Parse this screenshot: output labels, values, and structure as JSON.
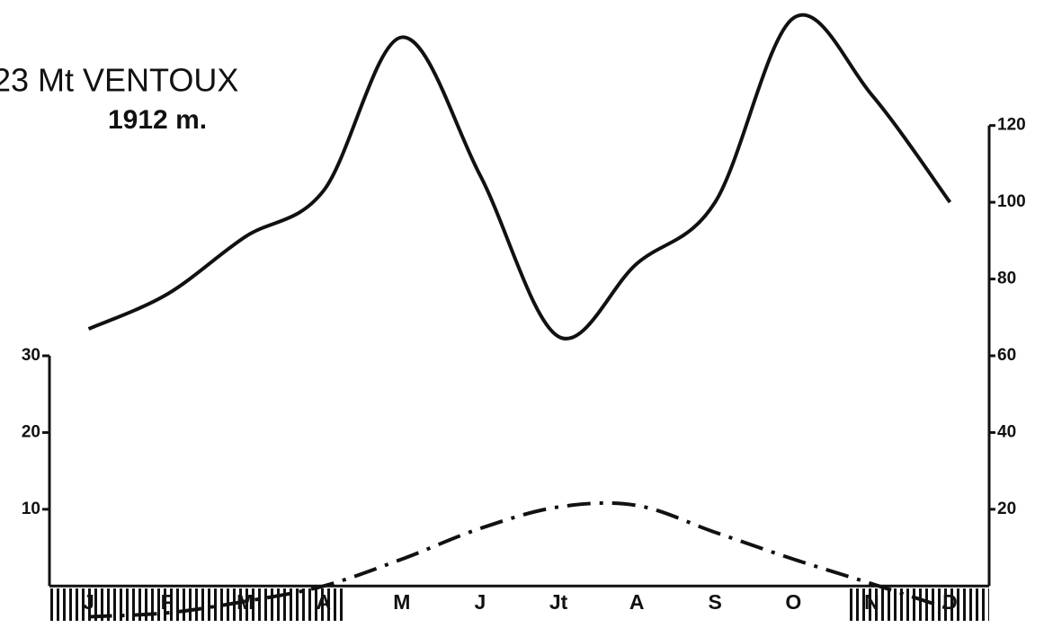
{
  "chart_data": {
    "type": "climate",
    "title": "23 Mt VENTOUX",
    "subtitle": "1912 m.",
    "categories": [
      "J",
      "F",
      "M",
      "A",
      "M",
      "J",
      "Jt",
      "A",
      "S",
      "O",
      "N",
      "D"
    ],
    "series": [
      {
        "color": "#111111",
        "axis": "y2",
        "values": [
          67,
          76,
          91,
          103,
          143,
          107,
          65,
          84,
          100,
          148,
          128,
          100
        ]
      },
      {
        "color": "#111111",
        "axis": "y",
        "values": [
          -4,
          -3.5,
          -2,
          0,
          3.5,
          7.5,
          10.3,
          10.5,
          7,
          3.5,
          0.3,
          -3
        ]
      }
    ],
    "ylim": [
      -5,
      76
    ],
    "yticks": [
      10,
      20,
      30
    ],
    "y2lim": [
      -10,
      152
    ],
    "y2ticks": [
      20,
      40,
      60,
      80,
      100,
      120
    ]
  }
}
